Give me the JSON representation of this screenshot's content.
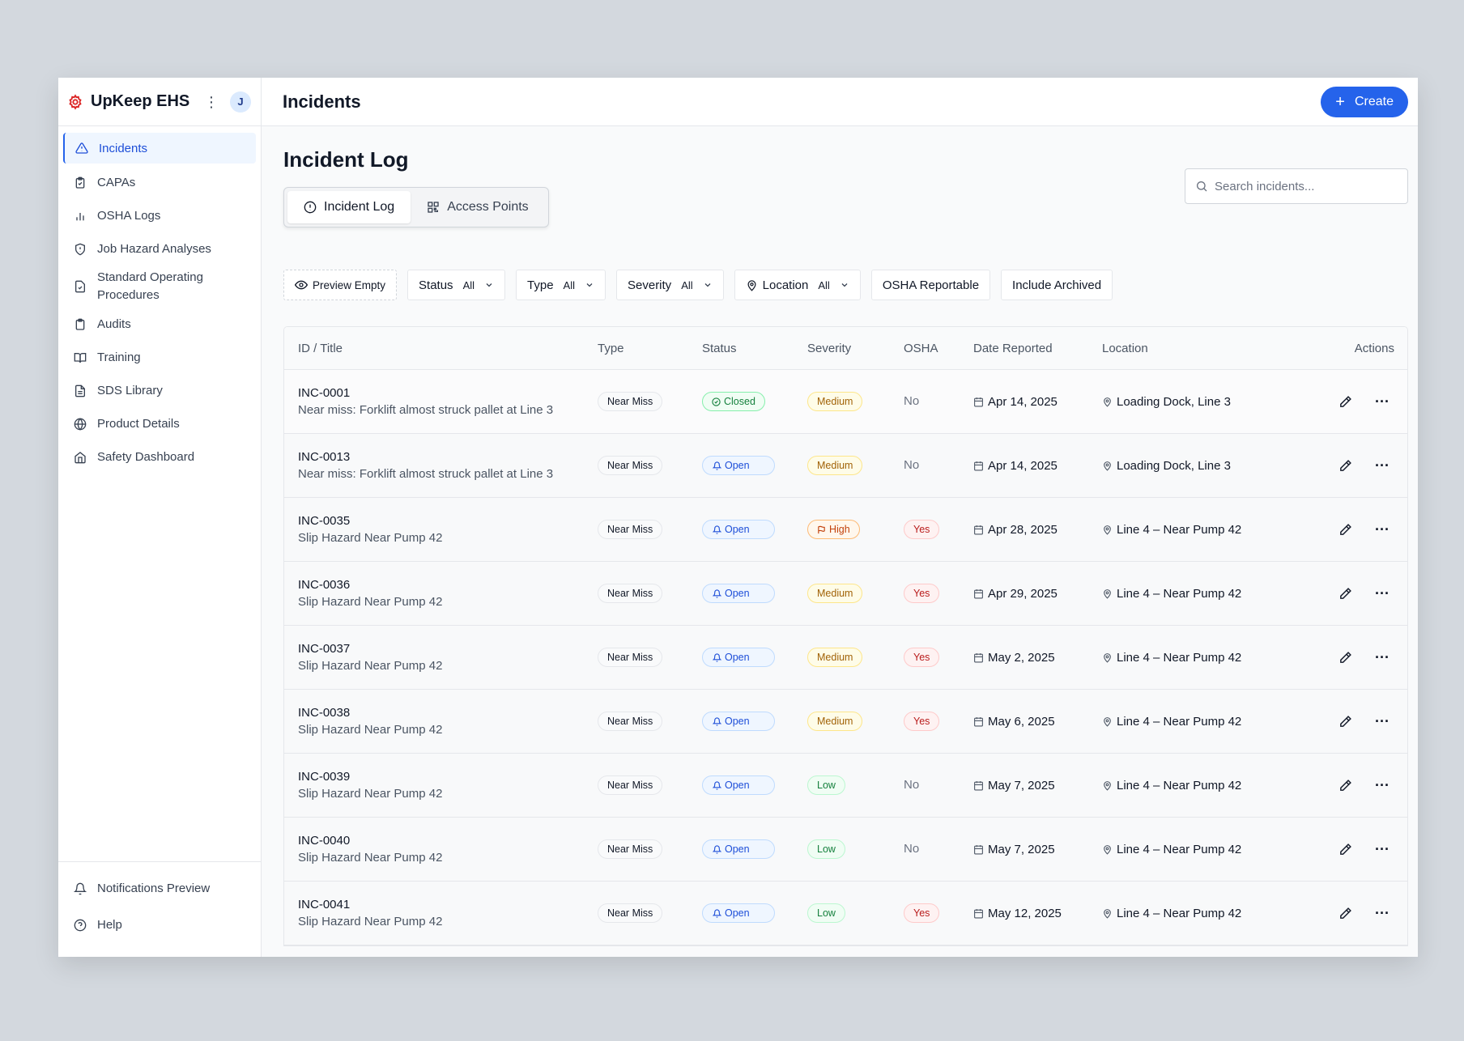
{
  "app": {
    "name": "UpKeep EHS",
    "avatar_initial": "J"
  },
  "sidebar": {
    "items": [
      {
        "label": "Incidents",
        "icon": "alert-triangle-icon",
        "active": true
      },
      {
        "label": "CAPAs",
        "icon": "clipboard-check-icon"
      },
      {
        "label": "OSHA Logs",
        "icon": "bar-chart-icon"
      },
      {
        "label": "Job Hazard Analyses",
        "icon": "shield-icon"
      },
      {
        "label": "Standard Operating Procedures",
        "icon": "file-check-icon"
      },
      {
        "label": "Audits",
        "icon": "clipboard-icon"
      },
      {
        "label": "Training",
        "icon": "book-open-icon"
      },
      {
        "label": "SDS Library",
        "icon": "file-text-icon"
      },
      {
        "label": "Product Details",
        "icon": "globe-icon"
      },
      {
        "label": "Safety Dashboard",
        "icon": "home-icon"
      }
    ],
    "bottom": [
      {
        "label": "Notifications Preview",
        "icon": "bell-icon"
      },
      {
        "label": "Help",
        "icon": "help-circle-icon"
      }
    ]
  },
  "header": {
    "title": "Incidents",
    "create_label": "Create"
  },
  "page": {
    "title": "Incident Log",
    "tabs": [
      {
        "label": "Incident Log",
        "icon": "alert-circle-icon",
        "active": true
      },
      {
        "label": "Access Points",
        "icon": "qr-code-icon"
      }
    ],
    "search_placeholder": "Search incidents..."
  },
  "filters": {
    "preview_empty": "Preview Empty",
    "status": {
      "label": "Status",
      "value": "All"
    },
    "type": {
      "label": "Type",
      "value": "All"
    },
    "severity": {
      "label": "Severity",
      "value": "All"
    },
    "location": {
      "label": "Location",
      "value": "All"
    },
    "osha_reportable": "OSHA Reportable",
    "include_archived": "Include Archived"
  },
  "table": {
    "columns": [
      "ID / Title",
      "Type",
      "Status",
      "Severity",
      "OSHA",
      "Date Reported",
      "Location",
      "Actions"
    ],
    "rows": [
      {
        "id": "INC-0001",
        "title": "Near miss: Forklift almost struck pallet at Line 3",
        "type": "Near Miss",
        "status": "Closed",
        "severity": "Medium",
        "osha": "No",
        "date": "Apr 14, 2025",
        "location": "Loading Dock, Line 3"
      },
      {
        "id": "INC-0013",
        "title": "Near miss: Forklift almost struck pallet at Line 3",
        "type": "Near Miss",
        "status": "Open",
        "severity": "Medium",
        "osha": "No",
        "date": "Apr 14, 2025",
        "location": "Loading Dock, Line 3"
      },
      {
        "id": "INC-0035",
        "title": "Slip Hazard Near Pump 42",
        "type": "Near Miss",
        "status": "Open",
        "severity": "High",
        "osha": "Yes",
        "date": "Apr 28, 2025",
        "location": "Line 4 – Near Pump 42"
      },
      {
        "id": "INC-0036",
        "title": "Slip Hazard Near Pump 42",
        "type": "Near Miss",
        "status": "Open",
        "severity": "Medium",
        "osha": "Yes",
        "date": "Apr 29, 2025",
        "location": "Line 4 – Near Pump 42"
      },
      {
        "id": "INC-0037",
        "title": "Slip Hazard Near Pump 42",
        "type": "Near Miss",
        "status": "Open",
        "severity": "Medium",
        "osha": "Yes",
        "date": "May 2, 2025",
        "location": "Line 4 – Near Pump 42"
      },
      {
        "id": "INC-0038",
        "title": "Slip Hazard Near Pump 42",
        "type": "Near Miss",
        "status": "Open",
        "severity": "Medium",
        "osha": "Yes",
        "date": "May 6, 2025",
        "location": "Line 4 – Near Pump 42"
      },
      {
        "id": "INC-0039",
        "title": "Slip Hazard Near Pump 42",
        "type": "Near Miss",
        "status": "Open",
        "severity": "Low",
        "osha": "No",
        "date": "May 7, 2025",
        "location": "Line 4 – Near Pump 42"
      },
      {
        "id": "INC-0040",
        "title": "Slip Hazard Near Pump 42",
        "type": "Near Miss",
        "status": "Open",
        "severity": "Low",
        "osha": "No",
        "date": "May 7, 2025",
        "location": "Line 4 – Near Pump 42"
      },
      {
        "id": "INC-0041",
        "title": "Slip Hazard Near Pump 42",
        "type": "Near Miss",
        "status": "Open",
        "severity": "Low",
        "osha": "Yes",
        "date": "May 12, 2025",
        "location": "Line 4 – Near Pump 42"
      }
    ]
  },
  "colors": {
    "accent": "#2563eb",
    "brand": "#dc2626"
  }
}
